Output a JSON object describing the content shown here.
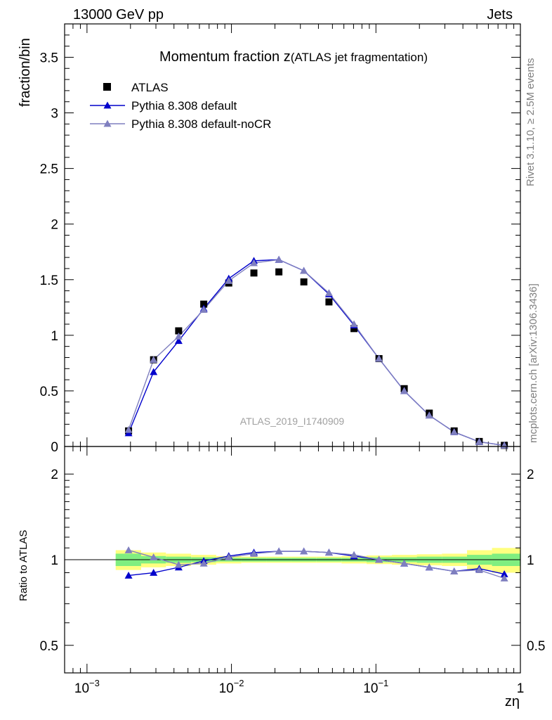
{
  "header": {
    "left": "13000 GeV pp",
    "right": "Jets"
  },
  "side_labels": {
    "rivet": "Rivet 3.1.10, ≥ 2.5M events",
    "mcplots": "mcplots.cern.ch [arXiv:1306.3436]"
  },
  "chart_data": [
    {
      "type": "scatter",
      "title": "Momentum fraction z",
      "title_suffix": "(ATLAS jet fragmentation)",
      "watermark": "ATLAS_2019_I1740909",
      "ylabel": "fraction/bin",
      "xscale": "log",
      "xlim": [
        0.0007,
        1
      ],
      "ylim": [
        0,
        3.8
      ],
      "yticks": [
        "0",
        "0.5",
        "1",
        "1.5",
        "2",
        "2.5",
        "3",
        "3.5"
      ],
      "legend_position": "top-left",
      "x": [
        0.00194,
        0.00289,
        0.00431,
        0.00643,
        0.00958,
        0.0143,
        0.0213,
        0.0317,
        0.0473,
        0.0705,
        0.105,
        0.157,
        0.234,
        0.348,
        0.519,
        0.774
      ],
      "series": [
        {
          "name": "ATLAS",
          "marker": "square",
          "color": "#000000",
          "values": [
            0.14,
            0.78,
            1.04,
            1.28,
            1.47,
            1.56,
            1.57,
            1.48,
            1.3,
            1.06,
            0.79,
            0.52,
            0.3,
            0.14,
            0.045,
            0.01
          ]
        },
        {
          "name": "Pythia 8.308 default",
          "marker": "triangle",
          "color": "#0000cc",
          "values": [
            0.12,
            0.67,
            0.95,
            1.24,
            1.51,
            1.67,
            1.68,
            1.58,
            1.37,
            1.09,
            0.79,
            0.5,
            0.28,
            0.13,
            0.042,
            0.009
          ]
        },
        {
          "name": "Pythia 8.308 default-noCR",
          "marker": "triangle",
          "color": "#7f7fbf",
          "values": [
            0.15,
            0.78,
            0.99,
            1.23,
            1.49,
            1.65,
            1.68,
            1.58,
            1.38,
            1.1,
            0.79,
            0.5,
            0.28,
            0.13,
            0.042,
            0.009
          ]
        }
      ]
    },
    {
      "type": "line",
      "ylabel": "Ratio to ATLAS",
      "xlabel": "zη",
      "xscale": "log",
      "yscale": "log",
      "xlim": [
        0.0007,
        1
      ],
      "ylim": [
        0.4,
        2.5
      ],
      "yticks": [
        "0.5",
        "1",
        "2"
      ],
      "xticks": [
        "10",
        "10",
        "10",
        "1"
      ],
      "xtick_exponents": [
        "−3",
        "−2",
        "−1",
        ""
      ],
      "x": [
        0.00194,
        0.00289,
        0.00431,
        0.00643,
        0.00958,
        0.0143,
        0.0213,
        0.0317,
        0.0473,
        0.0705,
        0.105,
        0.157,
        0.234,
        0.348,
        0.519,
        0.774
      ],
      "bands": {
        "inner_color": "#80ee80",
        "outer_color": "#ffff80",
        "edges": [
          0.00158,
          0.00237,
          0.00352,
          0.00526,
          0.00784,
          0.0117,
          0.0175,
          0.026,
          0.0388,
          0.0578,
          0.0862,
          0.129,
          0.192,
          0.286,
          0.427,
          0.636,
          1.0
        ],
        "inner_half": [
          0.05,
          0.03,
          0.025,
          0.02,
          0.015,
          0.015,
          0.015,
          0.015,
          0.015,
          0.015,
          0.02,
          0.02,
          0.025,
          0.025,
          0.04,
          0.05
        ],
        "outer_half": [
          0.08,
          0.06,
          0.05,
          0.04,
          0.03,
          0.025,
          0.025,
          0.025,
          0.025,
          0.03,
          0.035,
          0.04,
          0.045,
          0.05,
          0.08,
          0.1
        ]
      },
      "series": [
        {
          "name": "Pythia 8.308 default",
          "color": "#0000cc",
          "values": [
            0.88,
            0.9,
            0.94,
            0.99,
            1.03,
            1.06,
            1.07,
            1.07,
            1.06,
            1.03,
            1.0,
            0.97,
            0.94,
            0.91,
            0.93,
            0.89
          ]
        },
        {
          "name": "Pythia 8.308 default-noCR",
          "color": "#7f7fbf",
          "values": [
            1.08,
            1.02,
            0.96,
            0.97,
            1.02,
            1.05,
            1.07,
            1.07,
            1.06,
            1.04,
            1.0,
            0.97,
            0.94,
            0.91,
            0.92,
            0.86
          ]
        }
      ]
    }
  ]
}
